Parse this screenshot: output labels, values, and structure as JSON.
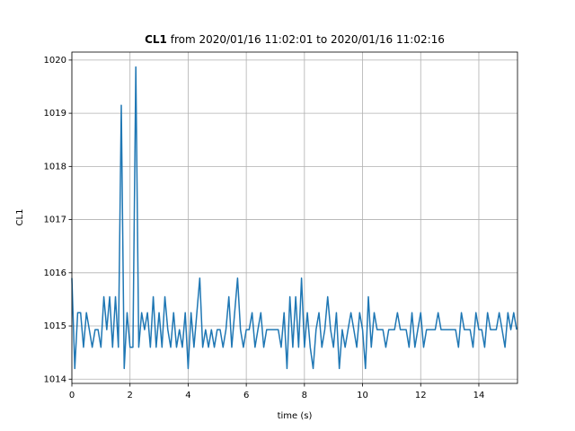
{
  "chart_data": {
    "type": "line",
    "title": {
      "bold": "CL1",
      "text": "from 2020/01/16 11:02:01 to 2020/01/16 11:02:16"
    },
    "x_label": "time (s)",
    "y_label": "CL1",
    "x": [
      0,
      0.1,
      0.2,
      0.3,
      0.4,
      0.5,
      0.6,
      0.7,
      0.8,
      0.9,
      1,
      1.1,
      1.2,
      1.3,
      1.4,
      1.5,
      1.6,
      1.7,
      1.8,
      1.9,
      2,
      2.1,
      2.2,
      2.3,
      2.4,
      2.5,
      2.6,
      2.7,
      2.8,
      2.9,
      3,
      3.1,
      3.2,
      3.3,
      3.4,
      3.5,
      3.6,
      3.7,
      3.8,
      3.9,
      4,
      4.1,
      4.2,
      4.3,
      4.4,
      4.5,
      4.6,
      4.7,
      4.8,
      4.9,
      5,
      5.1,
      5.2,
      5.3,
      5.4,
      5.5,
      5.6,
      5.7,
      5.8,
      5.9,
      6,
      6.1,
      6.2,
      6.3,
      6.4,
      6.5,
      6.6,
      6.7,
      6.8,
      6.9,
      7,
      7.1,
      7.2,
      7.3,
      7.4,
      7.5,
      7.6,
      7.7,
      7.8,
      7.9,
      8,
      8.1,
      8.2,
      8.3,
      8.4,
      8.5,
      8.6,
      8.7,
      8.8,
      8.9,
      9,
      9.1,
      9.2,
      9.3,
      9.4,
      9.5,
      9.6,
      9.7,
      9.8,
      9.9,
      10,
      10.1,
      10.2,
      10.3,
      10.4,
      10.5,
      10.6,
      10.7,
      10.8,
      10.9,
      11,
      11.1,
      11.2,
      11.3,
      11.4,
      11.5,
      11.6,
      11.7,
      11.8,
      11.9,
      12,
      12.1,
      12.2,
      12.3,
      12.4,
      12.5,
      12.6,
      12.7,
      12.8,
      12.9,
      13,
      13.1,
      13.2,
      13.3,
      13.4,
      13.5,
      13.6,
      13.7,
      13.8,
      13.9,
      14,
      14.1,
      14.2,
      14.3,
      14.4,
      14.5,
      14.6,
      14.7,
      14.8,
      14.9,
      15,
      15.1,
      15.2,
      15.3
    ],
    "series": [
      {
        "name": "CL1",
        "color": "#1f77b4",
        "values": [
          1015.9,
          1014.2,
          1015.25,
          1015.25,
          1014.6,
          1015.25,
          1014.93,
          1014.6,
          1014.93,
          1014.93,
          1014.6,
          1015.55,
          1014.93,
          1015.55,
          1014.6,
          1015.55,
          1014.6,
          1019.15,
          1014.2,
          1015.25,
          1014.6,
          1014.6,
          1019.87,
          1014.6,
          1015.25,
          1014.93,
          1015.25,
          1014.6,
          1015.55,
          1014.6,
          1015.25,
          1014.6,
          1015.55,
          1014.93,
          1014.6,
          1015.25,
          1014.6,
          1014.93,
          1014.6,
          1015.25,
          1014.2,
          1015.25,
          1014.6,
          1015.25,
          1015.9,
          1014.6,
          1014.93,
          1014.6,
          1014.93,
          1014.6,
          1014.93,
          1014.93,
          1014.6,
          1014.93,
          1015.55,
          1014.6,
          1015.25,
          1015.9,
          1014.93,
          1014.6,
          1014.93,
          1014.93,
          1015.25,
          1014.6,
          1014.93,
          1015.25,
          1014.6,
          1014.93,
          1014.93,
          1014.93,
          1014.93,
          1014.93,
          1014.6,
          1015.25,
          1014.2,
          1015.55,
          1014.6,
          1015.55,
          1014.6,
          1015.9,
          1014.6,
          1015.25,
          1014.6,
          1014.2,
          1014.93,
          1015.25,
          1014.6,
          1014.93,
          1015.55,
          1014.93,
          1014.6,
          1015.25,
          1014.2,
          1014.93,
          1014.6,
          1014.93,
          1015.25,
          1014.93,
          1014.6,
          1015.25,
          1014.93,
          1014.2,
          1015.55,
          1014.6,
          1015.25,
          1014.93,
          1014.93,
          1014.93,
          1014.6,
          1014.93,
          1014.93,
          1014.93,
          1015.25,
          1014.93,
          1014.93,
          1014.93,
          1014.6,
          1015.25,
          1014.6,
          1014.93,
          1015.25,
          1014.6,
          1014.93,
          1014.93,
          1014.93,
          1014.93,
          1015.25,
          1014.93,
          1014.93,
          1014.93,
          1014.93,
          1014.93,
          1014.93,
          1014.6,
          1015.25,
          1014.93,
          1014.93,
          1014.93,
          1014.6,
          1015.25,
          1014.93,
          1014.93,
          1014.6,
          1015.25,
          1014.93,
          1014.93,
          1014.93,
          1015.25,
          1014.93,
          1014.6,
          1015.25,
          1014.93,
          1015.25,
          1014.93
        ]
      }
    ],
    "xlim": [
      0,
      15.33
    ],
    "xticks": [
      0,
      2,
      4,
      6,
      8,
      10,
      12,
      14
    ],
    "ylim": [
      1013.92,
      1020.15
    ],
    "yticks": [
      1014,
      1015,
      1016,
      1017,
      1018,
      1019,
      1020
    ],
    "grid": true
  }
}
